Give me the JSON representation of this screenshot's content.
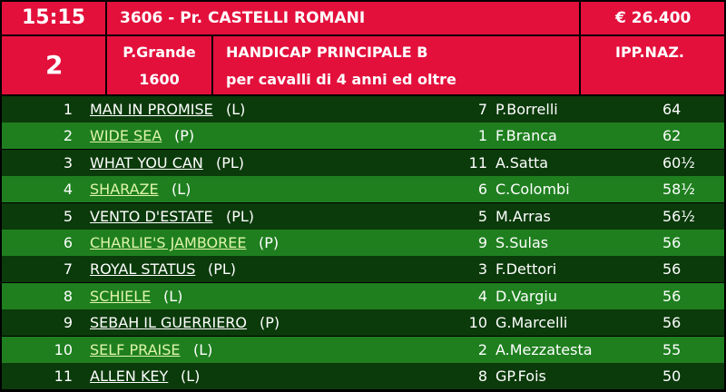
{
  "header": {
    "time": "15:15",
    "race": "3606 - Pr. CASTELLI ROMANI",
    "prize": "€ 26.400",
    "number": "2",
    "track": "P.Grande",
    "distance": "1600",
    "category": "HANDICAP PRINCIPALE B",
    "conditions": "per cavalli di 4 anni ed oltre",
    "code": "IPP.NAZ."
  },
  "table": {
    "rows": [
      [
        "1",
        "MAN IN PROMISE",
        "(L)",
        "7",
        "P.Borrelli",
        "64"
      ],
      [
        "2",
        "WIDE SEA",
        "(P)",
        "1",
        "F.Branca",
        "62"
      ],
      [
        "3",
        "WHAT YOU CAN",
        "(PL)",
        "11",
        "A.Satta",
        "60½"
      ],
      [
        "4",
        "SHARAZE",
        "(L)",
        "6",
        "C.Colombi",
        "58½"
      ],
      [
        "5",
        "VENTO D'ESTATE",
        "(PL)",
        "5",
        "M.Arras",
        "56½"
      ],
      [
        "6",
        "CHARLIE'S JAMBOREE",
        "(P)",
        "9",
        "S.Sulas",
        "56"
      ],
      [
        "7",
        "ROYAL STATUS",
        "(PL)",
        "3",
        "F.Dettori",
        "56"
      ],
      [
        "8",
        "SCHIELE",
        "(L)",
        "4",
        "D.Vargiu",
        "56"
      ],
      [
        "9",
        "SEBAH IL GUERRIERO",
        "(P)",
        "10",
        "G.Marcelli",
        "56"
      ],
      [
        "10",
        "SELF PRAISE",
        "(L)",
        "2",
        "A.Mezzatesta",
        "55"
      ],
      [
        "11",
        "ALLEN KEY",
        "(L)",
        "8",
        "GP.Fois",
        "50"
      ]
    ]
  }
}
